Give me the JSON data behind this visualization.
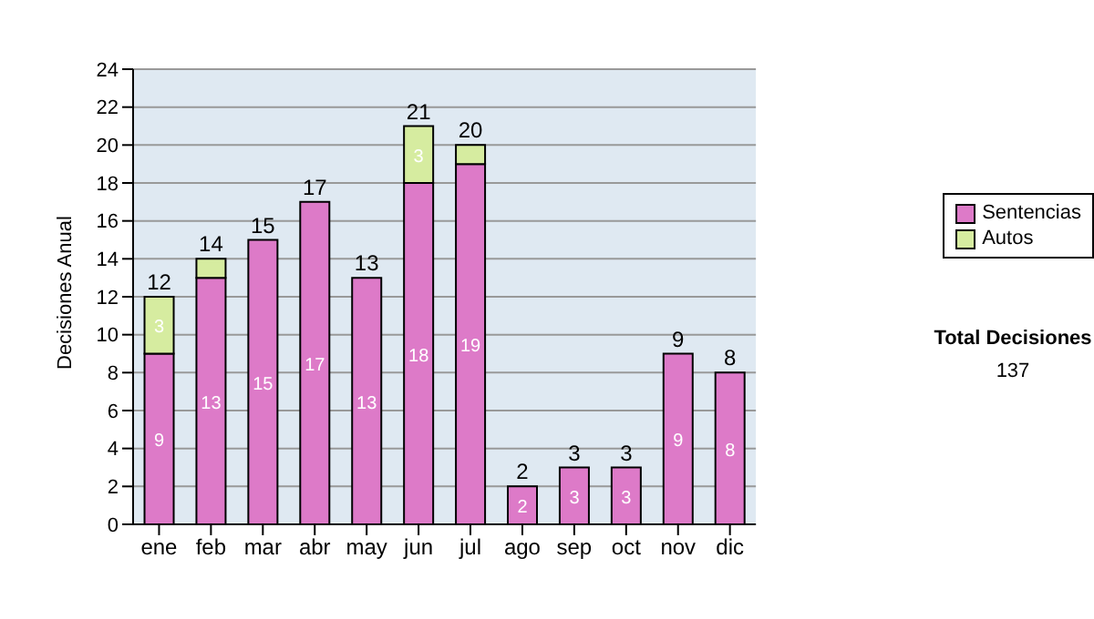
{
  "chart_data": {
    "type": "bar",
    "stacked": true,
    "ylabel": "Decisiones Anual",
    "categories": [
      "ene",
      "feb",
      "mar",
      "abr",
      "may",
      "jun",
      "jul",
      "ago",
      "sep",
      "oct",
      "nov",
      "dic"
    ],
    "series": [
      {
        "name": "Sentencias",
        "color": "#dd7ac8",
        "values": [
          9,
          13,
          15,
          17,
          13,
          18,
          19,
          2,
          3,
          3,
          9,
          8
        ],
        "value_labels": [
          "9",
          "13",
          "15",
          "17",
          "13",
          "18",
          "19",
          "2",
          "3",
          "3",
          "9",
          "8"
        ]
      },
      {
        "name": "Autos",
        "color": "#d6eca0",
        "values": [
          3,
          1,
          0,
          0,
          0,
          3,
          1,
          0,
          0,
          0,
          0,
          0
        ],
        "value_labels": [
          "3",
          null,
          null,
          null,
          null,
          "3",
          null,
          null,
          null,
          null,
          null,
          null
        ]
      }
    ],
    "totals": [
      "12",
      "14",
      "15",
      "17",
      "13",
      "21",
      "20",
      "2",
      "3",
      "3",
      "9",
      "8"
    ],
    "ylim": [
      0,
      24
    ],
    "yticks": [
      0,
      2,
      4,
      6,
      8,
      10,
      12,
      14,
      16,
      18,
      20,
      22,
      24
    ],
    "grid": "y",
    "legend": "right",
    "annotations": [
      "Total Decisiones",
      "137"
    ]
  }
}
